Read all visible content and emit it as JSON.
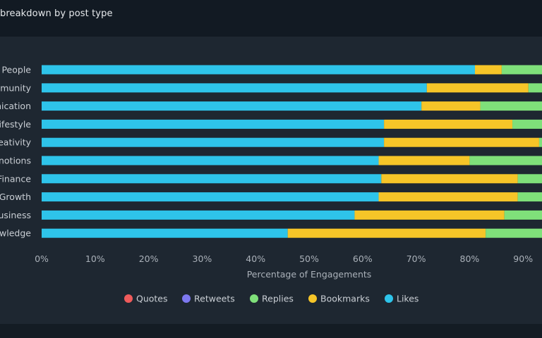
{
  "title": "breakdown by post type",
  "chart_data": {
    "type": "bar",
    "orientation": "horizontal",
    "stacked": true,
    "normalized": true,
    "categories": [
      "People",
      "munity",
      "nication",
      "ifestyle",
      "eativity",
      "notions",
      "Finance",
      "Growth",
      "usiness",
      "wledge"
    ],
    "series": [
      {
        "name": "Likes",
        "color": "#2ec4ea",
        "values": [
          81,
          72,
          71,
          64,
          64,
          63,
          63.5,
          63,
          58.5,
          46
        ]
      },
      {
        "name": "Bookmarks",
        "color": "#f6c528",
        "values": [
          5,
          19,
          11,
          24,
          29,
          17,
          25.5,
          26,
          28,
          37
        ]
      },
      {
        "name": "Replies",
        "color": "#7fe07a",
        "values": [
          14,
          9,
          18,
          12,
          7,
          20,
          11,
          11,
          13.5,
          17
        ]
      },
      {
        "name": "Retweets",
        "color": "#7d78f0",
        "values": [
          0,
          0,
          0,
          0,
          0,
          0,
          0,
          0,
          0,
          0
        ]
      },
      {
        "name": "Quotes",
        "color": "#ef5b5b",
        "values": [
          0,
          0,
          0,
          0,
          0,
          0,
          0,
          0,
          0,
          0
        ]
      }
    ],
    "xlim": [
      0,
      100
    ],
    "xticks": [
      "0%",
      "10%",
      "20%",
      "30%",
      "40%",
      "50%",
      "60%",
      "70%",
      "80%",
      "90%"
    ],
    "xlabel": "Percentage of Engagements",
    "legend": {
      "position": "bottom",
      "order": [
        "Quotes",
        "Retweets",
        "Replies",
        "Bookmarks",
        "Likes"
      ]
    }
  }
}
